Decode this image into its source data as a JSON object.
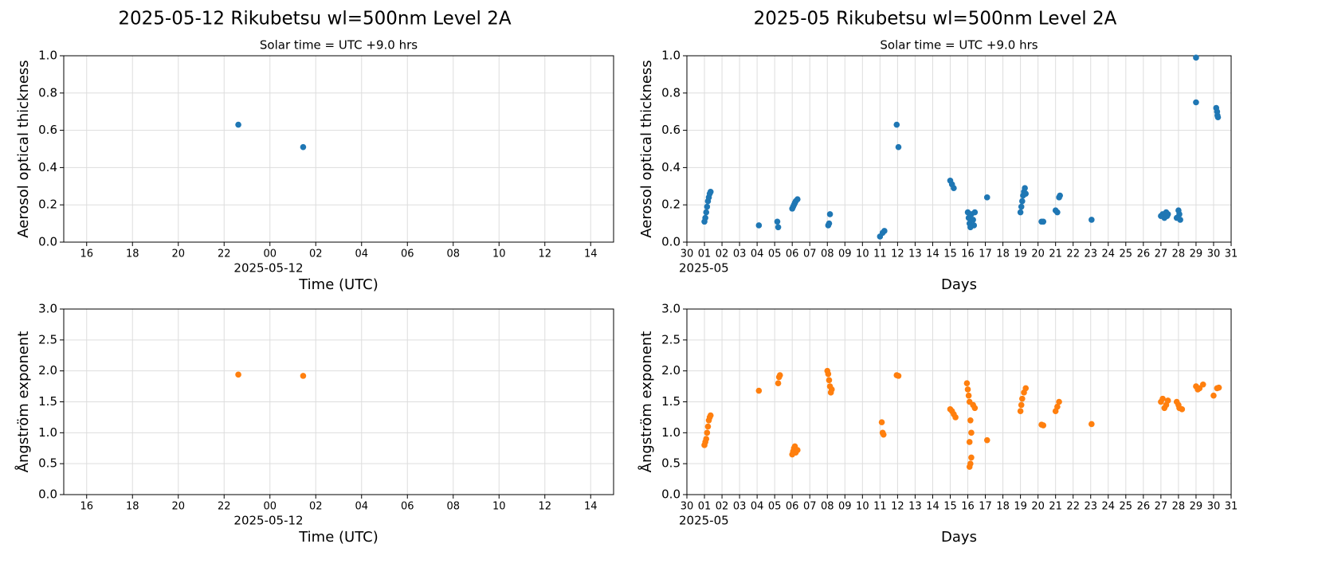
{
  "chart_data": [
    {
      "type": "scatter",
      "title": "2025-05-12  Rikubetsu  wl=500nm  Level 2A",
      "subtitle": "Solar time = UTC +9.0 hrs",
      "x_label": "Time (UTC)",
      "x_offset_label": "2025-05-12",
      "y_label": "Aerosol optical thickness",
      "x": [
        -1.38,
        1.45
      ],
      "values": [
        0.63,
        0.51
      ],
      "color": "#1f77b4",
      "xlim": [
        -9,
        15
      ],
      "xticks": [
        {
          "value": -8,
          "label": "16"
        },
        {
          "value": -6,
          "label": "18"
        },
        {
          "value": -4,
          "label": "20"
        },
        {
          "value": -2,
          "label": "22"
        },
        {
          "value": 0,
          "label": "00"
        },
        {
          "value": 2,
          "label": "02"
        },
        {
          "value": 4,
          "label": "04"
        },
        {
          "value": 6,
          "label": "06"
        },
        {
          "value": 8,
          "label": "08"
        },
        10,
        12,
        14
      ],
      "ylim": [
        0,
        1
      ],
      "yticks": [
        {
          "value": 0,
          "label": "0.0"
        },
        0.2,
        0.4,
        0.6,
        0.8,
        {
          "value": 1,
          "label": "1.0"
        }
      ],
      "grid": true
    },
    {
      "type": "scatter",
      "title": "2025-05  Rikubetsu  wl=500nm  Level 2A",
      "subtitle": "Solar time = UTC +9.0 hrs",
      "x_label": "Days",
      "x_offset_label": "2025-05",
      "y_label": "Aerosol optical thickness",
      "x": [
        1.0,
        1.05,
        1.1,
        1.15,
        1.2,
        1.25,
        1.3,
        1.35,
        4.1,
        5.15,
        5.2,
        6.0,
        6.05,
        6.1,
        6.15,
        6.2,
        6.3,
        8.05,
        8.1,
        8.15,
        11.0,
        11.15,
        11.25,
        11.95,
        12.05,
        15.0,
        15.1,
        15.2,
        16.0,
        16.05,
        16.1,
        16.15,
        16.2,
        16.3,
        16.35,
        16.4,
        17.1,
        19.0,
        19.05,
        19.1,
        19.15,
        19.2,
        19.25,
        19.3,
        20.2,
        20.3,
        21.0,
        21.1,
        21.2,
        21.25,
        23.05,
        27.0,
        27.1,
        27.2,
        27.3,
        27.35,
        27.4,
        27.9,
        28.0,
        28.05,
        28.1,
        29.0,
        29.0,
        30.15,
        30.2,
        30.22,
        30.25
      ],
      "values": [
        0.11,
        0.13,
        0.16,
        0.19,
        0.22,
        0.24,
        0.26,
        0.27,
        0.09,
        0.11,
        0.08,
        0.18,
        0.19,
        0.2,
        0.21,
        0.22,
        0.23,
        0.09,
        0.1,
        0.15,
        0.03,
        0.05,
        0.06,
        0.63,
        0.51,
        0.33,
        0.31,
        0.29,
        0.16,
        0.13,
        0.1,
        0.08,
        0.15,
        0.12,
        0.09,
        0.16,
        0.24,
        0.16,
        0.19,
        0.22,
        0.25,
        0.27,
        0.29,
        0.26,
        0.11,
        0.11,
        0.17,
        0.16,
        0.24,
        0.25,
        0.12,
        0.14,
        0.15,
        0.13,
        0.16,
        0.14,
        0.15,
        0.13,
        0.17,
        0.15,
        0.12,
        0.99,
        0.75,
        0.72,
        0.7,
        0.68,
        0.67
      ],
      "color": "#1f77b4",
      "xlim": [
        0,
        31
      ],
      "xticks": [
        {
          "value": 0,
          "label": "30"
        },
        {
          "value": 1,
          "label": "01"
        },
        {
          "value": 2,
          "label": "02"
        },
        {
          "value": 3,
          "label": "03"
        },
        {
          "value": 4,
          "label": "04"
        },
        {
          "value": 5,
          "label": "05"
        },
        {
          "value": 6,
          "label": "06"
        },
        {
          "value": 7,
          "label": "07"
        },
        {
          "value": 8,
          "label": "08"
        },
        {
          "value": 9,
          "label": "09"
        },
        10,
        11,
        12,
        13,
        14,
        15,
        16,
        17,
        18,
        19,
        20,
        21,
        22,
        23,
        24,
        25,
        26,
        27,
        28,
        29,
        30,
        31
      ],
      "ylim": [
        0,
        1
      ],
      "yticks": [
        {
          "value": 0,
          "label": "0.0"
        },
        0.2,
        0.4,
        0.6,
        0.8,
        {
          "value": 1,
          "label": "1.0"
        }
      ],
      "grid": true
    },
    {
      "type": "scatter",
      "x_label": "Time (UTC)",
      "x_offset_label": "2025-05-12",
      "y_label": "Ångström exponent",
      "x": [
        -1.38,
        1.45
      ],
      "values": [
        1.94,
        1.92
      ],
      "color": "#ff7f0e",
      "xlim": [
        -9,
        15
      ],
      "xticks": [
        {
          "value": -8,
          "label": "16"
        },
        {
          "value": -6,
          "label": "18"
        },
        {
          "value": -4,
          "label": "20"
        },
        {
          "value": -2,
          "label": "22"
        },
        {
          "value": 0,
          "label": "00"
        },
        {
          "value": 2,
          "label": "02"
        },
        {
          "value": 4,
          "label": "04"
        },
        {
          "value": 6,
          "label": "06"
        },
        {
          "value": 8,
          "label": "08"
        },
        10,
        12,
        14
      ],
      "ylim": [
        0,
        3
      ],
      "yticks": [
        {
          "value": 0,
          "label": "0.0"
        },
        0.5,
        {
          "value": 1,
          "label": "1.0"
        },
        1.5,
        {
          "value": 2,
          "label": "2.0"
        },
        2.5,
        {
          "value": 3,
          "label": "3.0"
        }
      ],
      "grid": true
    },
    {
      "type": "scatter",
      "x_label": "Days",
      "x_offset_label": "2025-05",
      "y_label": "Ångström exponent",
      "x": [
        1.0,
        1.05,
        1.1,
        1.15,
        1.2,
        1.25,
        1.3,
        1.35,
        4.1,
        5.2,
        5.25,
        5.3,
        6.0,
        6.05,
        6.1,
        6.15,
        6.2,
        6.3,
        8.0,
        8.05,
        8.1,
        8.15,
        8.2,
        8.25,
        11.1,
        11.15,
        11.2,
        11.95,
        12.05,
        15.0,
        15.1,
        15.2,
        15.3,
        15.95,
        16.0,
        16.05,
        16.1,
        16.15,
        16.2,
        16.1,
        16.2,
        16.15,
        16.1,
        16.3,
        16.4,
        17.1,
        19.0,
        19.05,
        19.1,
        19.2,
        19.3,
        20.2,
        20.3,
        21.0,
        21.1,
        21.2,
        23.05,
        27.0,
        27.1,
        27.2,
        27.3,
        27.4,
        27.9,
        28.0,
        28.05,
        28.2,
        29.0,
        29.1,
        29.2,
        29.4,
        30.0,
        30.2,
        30.3
      ],
      "values": [
        0.8,
        0.85,
        0.9,
        1.0,
        1.1,
        1.2,
        1.25,
        1.28,
        1.68,
        1.8,
        1.9,
        1.93,
        0.65,
        0.7,
        0.75,
        0.78,
        0.68,
        0.72,
        2.0,
        1.95,
        1.85,
        1.75,
        1.65,
        1.7,
        1.17,
        1.0,
        0.97,
        1.93,
        1.92,
        1.38,
        1.35,
        1.3,
        1.25,
        1.8,
        1.7,
        1.6,
        1.5,
        1.2,
        1.0,
        0.85,
        0.6,
        0.5,
        0.45,
        1.45,
        1.4,
        0.88,
        1.35,
        1.45,
        1.55,
        1.65,
        1.72,
        1.13,
        1.12,
        1.35,
        1.42,
        1.5,
        1.14,
        1.5,
        1.55,
        1.4,
        1.45,
        1.52,
        1.5,
        1.45,
        1.4,
        1.38,
        1.75,
        1.7,
        1.72,
        1.78,
        1.6,
        1.72,
        1.73
      ],
      "color": "#ff7f0e",
      "xlim": [
        0,
        31
      ],
      "xticks": [
        {
          "value": 0,
          "label": "30"
        },
        {
          "value": 1,
          "label": "01"
        },
        {
          "value": 2,
          "label": "02"
        },
        {
          "value": 3,
          "label": "03"
        },
        {
          "value": 4,
          "label": "04"
        },
        {
          "value": 5,
          "label": "05"
        },
        {
          "value": 6,
          "label": "06"
        },
        {
          "value": 7,
          "label": "07"
        },
        {
          "value": 8,
          "label": "08"
        },
        {
          "value": 9,
          "label": "09"
        },
        10,
        11,
        12,
        13,
        14,
        15,
        16,
        17,
        18,
        19,
        20,
        21,
        22,
        23,
        24,
        25,
        26,
        27,
        28,
        29,
        30,
        31
      ],
      "ylim": [
        0,
        3
      ],
      "yticks": [
        {
          "value": 0,
          "label": "0.0"
        },
        0.5,
        {
          "value": 1,
          "label": "1.0"
        },
        1.5,
        {
          "value": 2,
          "label": "2.0"
        },
        2.5,
        {
          "value": 3,
          "label": "3.0"
        }
      ],
      "grid": true
    }
  ]
}
